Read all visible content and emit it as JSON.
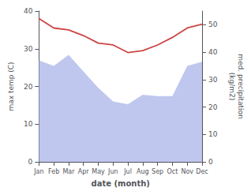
{
  "chart_data": {
    "type": "line",
    "categories": [
      "Jan",
      "Feb",
      "Mar",
      "Apr",
      "May",
      "Jun",
      "Jul",
      "Aug",
      "Sep",
      "Oct",
      "Nov",
      "Dec"
    ],
    "series": [
      {
        "type": "area",
        "axis": "y2",
        "color": "#aab4e8",
        "values": [
          37.0,
          35.0,
          39.0,
          33.0,
          27.0,
          22.0,
          21.0,
          24.5,
          24.0,
          24.0,
          35.0,
          36.5
        ]
      },
      {
        "type": "line",
        "axis": "y",
        "color": "#cc4444",
        "values": [
          38.0,
          35.5,
          35.0,
          33.5,
          31.5,
          31.0,
          29.0,
          29.5,
          31.0,
          33.0,
          35.5,
          36.5
        ]
      }
    ],
    "xlabel": "date (month)",
    "ylabel": "max temp (C)",
    "y2label": "med. precipitation\n(kg/m2)",
    "ylim": [
      0,
      40
    ],
    "yticks": [
      0,
      10,
      20,
      30,
      40
    ],
    "y2lim": [
      0,
      55
    ],
    "y2ticks": [
      0,
      10,
      20,
      30,
      40,
      50
    ],
    "grid": false
  }
}
